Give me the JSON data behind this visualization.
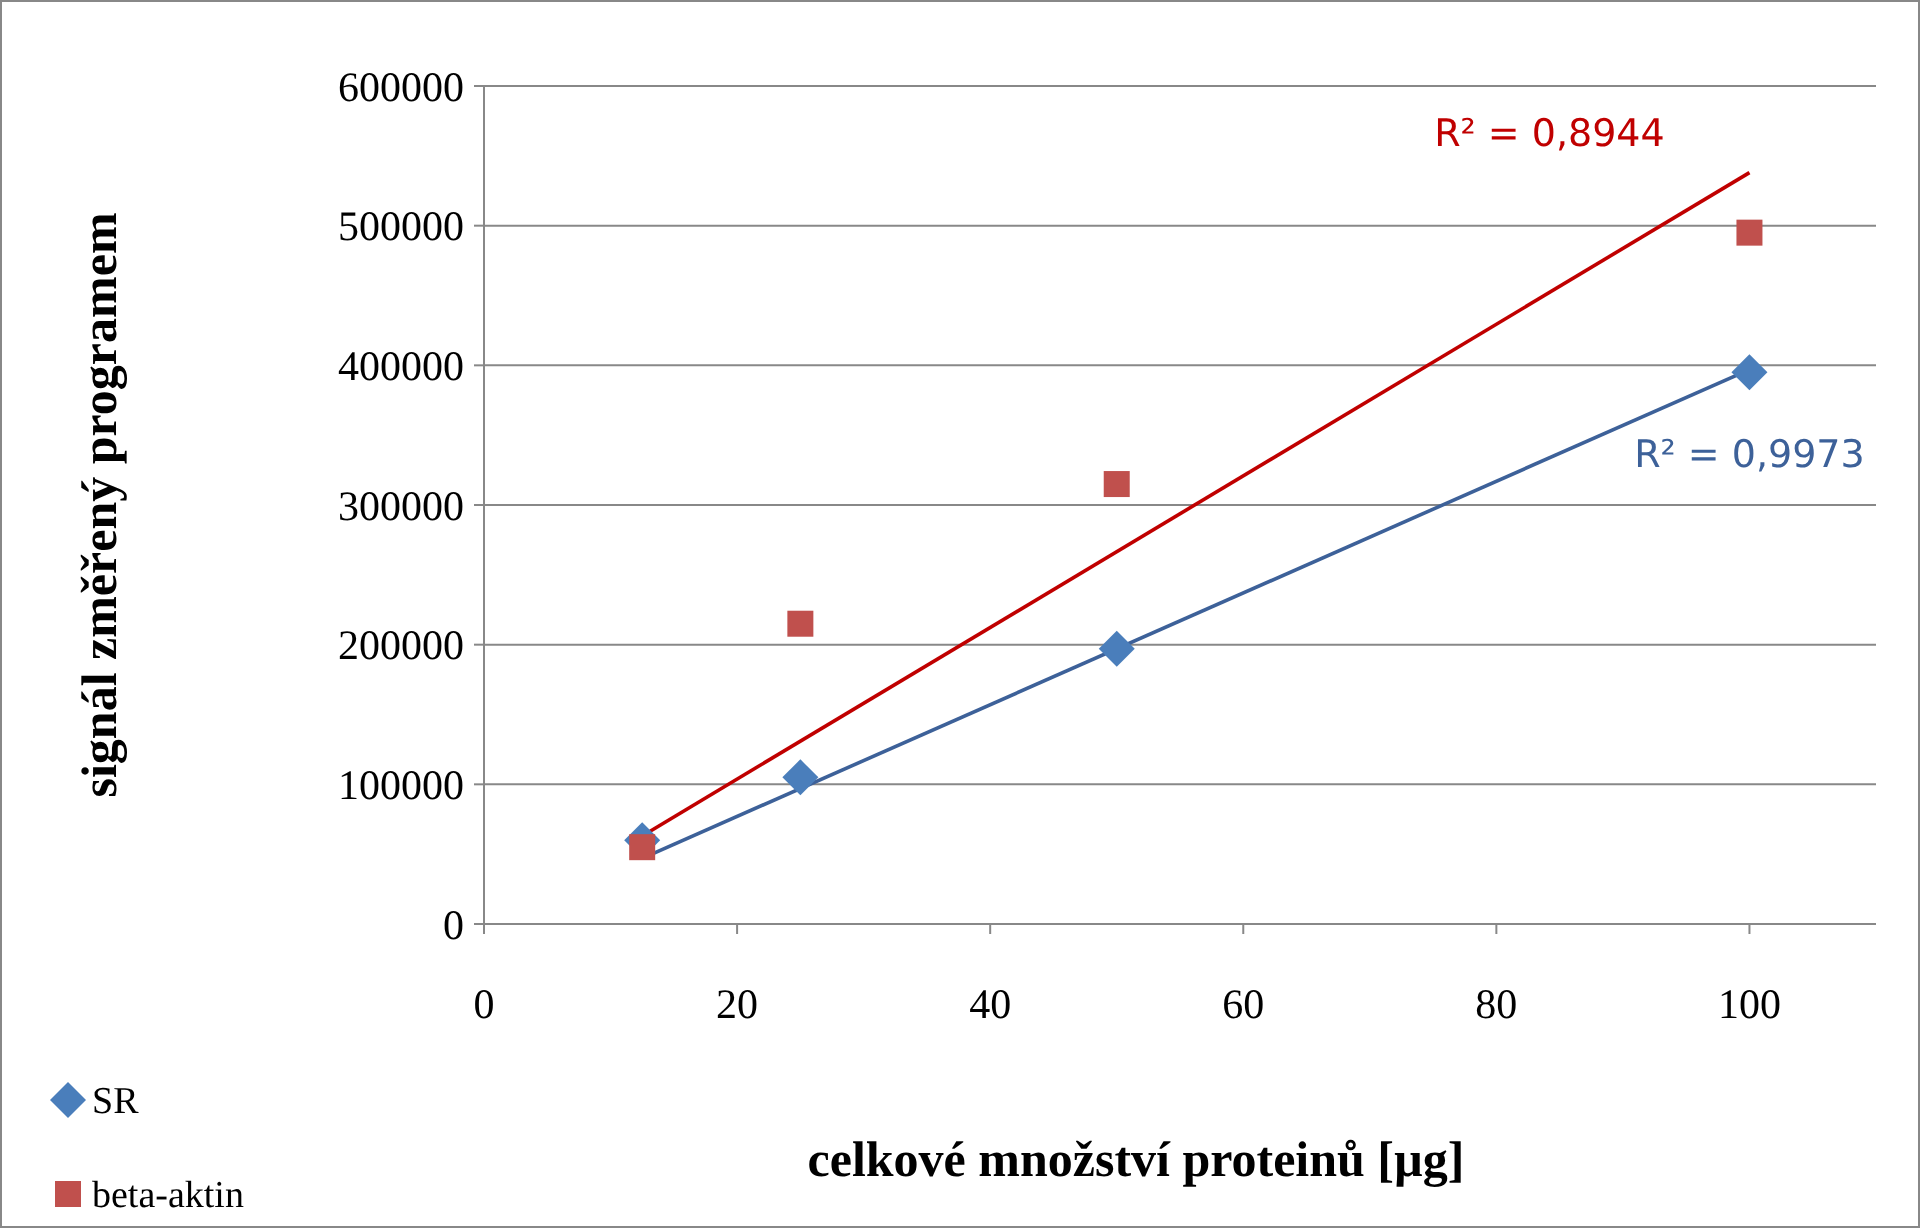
{
  "chart_data": {
    "type": "scatter",
    "xlabel": "celkové množství proteinů [µg]",
    "ylabel": "signál změřený programem",
    "xlim": [
      0,
      110
    ],
    "xticks": [
      0,
      20,
      40,
      60,
      80,
      100
    ],
    "ylim": [
      0,
      600000
    ],
    "yticks": [
      0,
      100000,
      200000,
      300000,
      400000,
      500000,
      600000
    ],
    "grid": "y",
    "legend": "bottom left",
    "series": [
      {
        "name": "SR",
        "color": "#4a7ebb",
        "marker": "diamond",
        "x": [
          12.5,
          25,
          50,
          100
        ],
        "values": [
          60000,
          105000,
          197000,
          395000
        ]
      },
      {
        "name": "beta-aktin",
        "color": "#c0504d",
        "marker": "square",
        "x": [
          12.5,
          25,
          50,
          100
        ],
        "values": [
          55000,
          215000,
          315000,
          495000
        ]
      },
      {
        "type": "line",
        "color": "#3d6199",
        "marker": "none",
        "x": [
          12.5,
          100
        ],
        "values": [
          47000,
          397000
        ]
      },
      {
        "type": "line",
        "color": "#c00000",
        "marker": "none",
        "x": [
          12.5,
          100
        ],
        "values": [
          63000,
          538000
        ]
      }
    ],
    "annotations": [
      "R² = 0,8944",
      "R² = 0,9973"
    ]
  }
}
